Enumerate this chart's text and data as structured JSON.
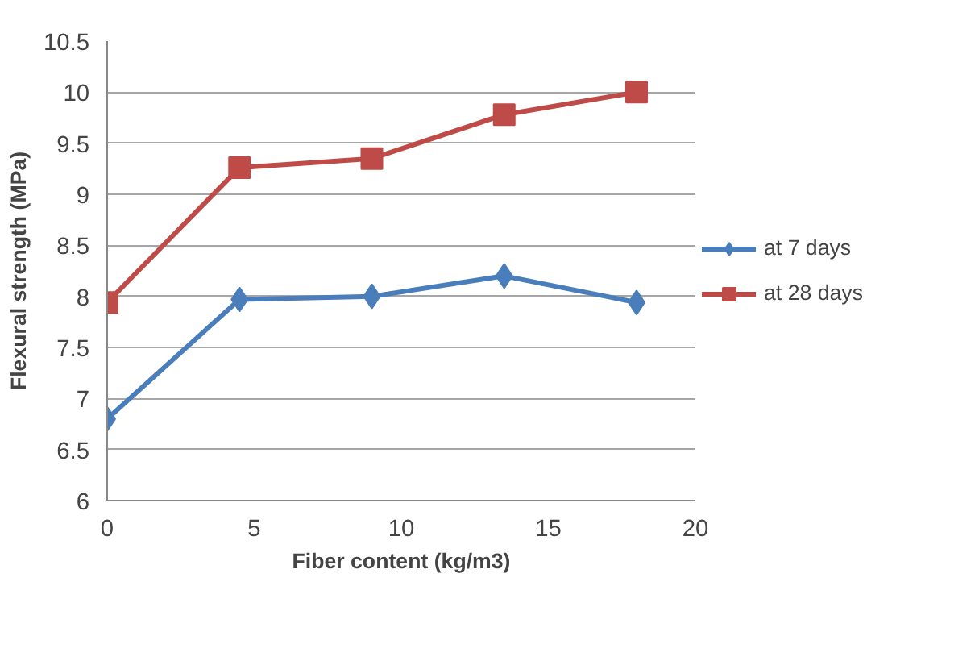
{
  "chart_data": {
    "type": "line",
    "xlabel": "Fiber content (kg/m3)",
    "ylabel": "Flexural strength (MPa)",
    "x": [
      0,
      4.5,
      9,
      13.5,
      18
    ],
    "series": [
      {
        "name": "at 7 days",
        "color": "#4a7ebb",
        "marker": "diamond",
        "values": [
          6.8,
          7.97,
          8.0,
          8.2,
          7.94
        ]
      },
      {
        "name": "at 28 days",
        "color": "#be4b48",
        "marker": "square",
        "values": [
          7.94,
          9.26,
          9.35,
          9.78,
          10.0
        ]
      }
    ],
    "xlim": [
      0,
      20
    ],
    "xticks": [
      0,
      5,
      10,
      15,
      20
    ],
    "ylim": [
      6,
      10.5
    ],
    "yticks": [
      6,
      6.5,
      7,
      7.5,
      8,
      8.5,
      9,
      9.5,
      10,
      10.5
    ],
    "grid": "y",
    "legend": "right",
    "line_style": "solid"
  }
}
